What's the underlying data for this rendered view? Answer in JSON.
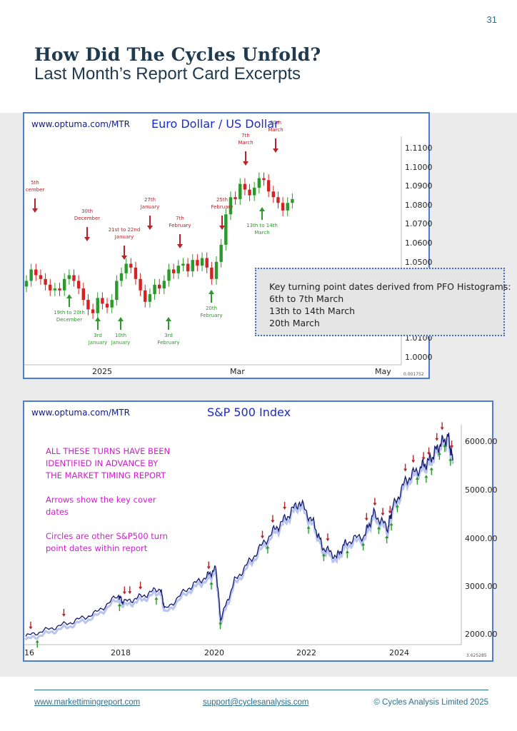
{
  "page_number": "31",
  "heading": {
    "title": "How Did The Cycles Unfold?",
    "subtitle": "Last Month’s Report Card Excerpts"
  },
  "eurusd": {
    "source": "www.optuma.com/MTR",
    "title": "Euro Dollar / US Dollar",
    "y_ticks": [
      "1.1100",
      "1.1000",
      "1.0900",
      "1.0800",
      "1.0700",
      "1.0600",
      "1.0500",
      "1.0100",
      "1.0000"
    ],
    "x_ticks": [
      "2025",
      "Mar",
      "May"
    ],
    "footer_val": "0.001752",
    "red_arrows": [
      {
        "label": "5th\ncember",
        "x": 49,
        "y": 290
      },
      {
        "label": "30th\nDecember",
        "x": 122,
        "y": 330
      },
      {
        "label": "21st to 22nd\nJanuary",
        "x": 174,
        "y": 356
      },
      {
        "label": "27th\nJanuary",
        "x": 210,
        "y": 314
      },
      {
        "label": "7th\nFebruary",
        "x": 252,
        "y": 340
      },
      {
        "label": "25th\nFebruary",
        "x": 311,
        "y": 314
      },
      {
        "label": "7th\nMarch",
        "x": 344,
        "y": 224
      },
      {
        "label": "20th\nMarch",
        "x": 386,
        "y": 206
      }
    ],
    "green_arrows": [
      {
        "label": "19th to 20th\nDecember",
        "x": 97,
        "y": 438
      },
      {
        "label": "3rd\nJanuary",
        "x": 137,
        "y": 470
      },
      {
        "label": "10th\nJanuary",
        "x": 169,
        "y": 470
      },
      {
        "label": "3rd\nFebruary",
        "x": 236,
        "y": 470
      },
      {
        "label": "20th\nFebruary",
        "x": 296,
        "y": 432
      },
      {
        "label": "13th to 14th\nMarch",
        "x": 367,
        "y": 316
      }
    ],
    "note": {
      "heading": "Key turning point dates derived from PFO Histograms:",
      "lines": [
        "6th to 7th March",
        "13th to 14th March",
        "20th March"
      ]
    }
  },
  "spx": {
    "source": "www.optuma.com/MTR",
    "title": "S&P 500 Index",
    "y_ticks": [
      "6000.00",
      "5000.00",
      "4000.00",
      "3000.00",
      "2000.00"
    ],
    "x_ticks": [
      "16",
      "2018",
      "2020",
      "2022",
      "2024"
    ],
    "footer_val": "3.625285",
    "annotation": [
      "ALL THESE TURNS HAVE BEEN",
      "IDENTIFIED IN ADVANCE BY",
      "THE MARKET TIMING REPORT",
      "Arrows show the key cover",
      "dates",
      "Circles are other S&P500 turn",
      "point dates within report"
    ]
  },
  "chart_data": [
    {
      "type": "line",
      "title": "Euro Dollar / US Dollar",
      "xlabel": "",
      "ylabel": "",
      "ylim": [
        1.0,
        1.11
      ],
      "x_ticks": [
        "2025",
        "Mar",
        "May"
      ],
      "series": [
        {
          "values": [
            1.04,
            1.046,
            1.043,
            1.041,
            1.038,
            1.035,
            1.036,
            1.035,
            1.041,
            1.043,
            1.04,
            1.036,
            1.03,
            1.025,
            1.023,
            1.031,
            1.028,
            1.026,
            1.03,
            1.04,
            1.044,
            1.049,
            1.047,
            1.041,
            1.035,
            1.029,
            1.033,
            1.038,
            1.036,
            1.04,
            1.046,
            1.044,
            1.048,
            1.049,
            1.045,
            1.051,
            1.048,
            1.052,
            1.047,
            1.041,
            1.05,
            1.059,
            1.075,
            1.084,
            1.083,
            1.091,
            1.088,
            1.085,
            1.089,
            1.094,
            1.093,
            1.087,
            1.084,
            1.081,
            1.077,
            1.081,
            1.083
          ]
        }
      ]
    },
    {
      "type": "line",
      "title": "S&P 500 Index",
      "xlabel": "",
      "ylabel": "",
      "ylim": [
        1800,
        6300
      ],
      "x_ticks": [
        "16",
        "2018",
        "2020",
        "2022",
        "2024"
      ],
      "series": [
        {
          "x": [
            2016.0,
            2016.5,
            2017.0,
            2017.5,
            2018.0,
            2018.1,
            2018.5,
            2018.9,
            2019.0,
            2019.5,
            2019.9,
            2020.1,
            2020.2,
            2020.5,
            2020.9,
            2021.3,
            2021.6,
            2021.9,
            2022.2,
            2022.4,
            2022.7,
            2022.9,
            2023.3,
            2023.5,
            2023.8,
            2023.9,
            2024.2,
            2024.5,
            2024.7,
            2024.9,
            2025.1,
            2025.2
          ],
          "values": [
            1950,
            2100,
            2250,
            2430,
            2800,
            2650,
            2780,
            2950,
            2500,
            2950,
            3200,
            3350,
            2300,
            3100,
            3600,
            4100,
            4400,
            4750,
            4300,
            3800,
            3600,
            3900,
            4050,
            4500,
            4200,
            4600,
            5200,
            5450,
            5600,
            5900,
            6100,
            5600
          ]
        }
      ]
    }
  ],
  "footer": {
    "website": "www.markettimingreport.com",
    "email": "support@cyclesanalysis.com",
    "copyright": "© Cycles Analysis Limited 2025"
  }
}
